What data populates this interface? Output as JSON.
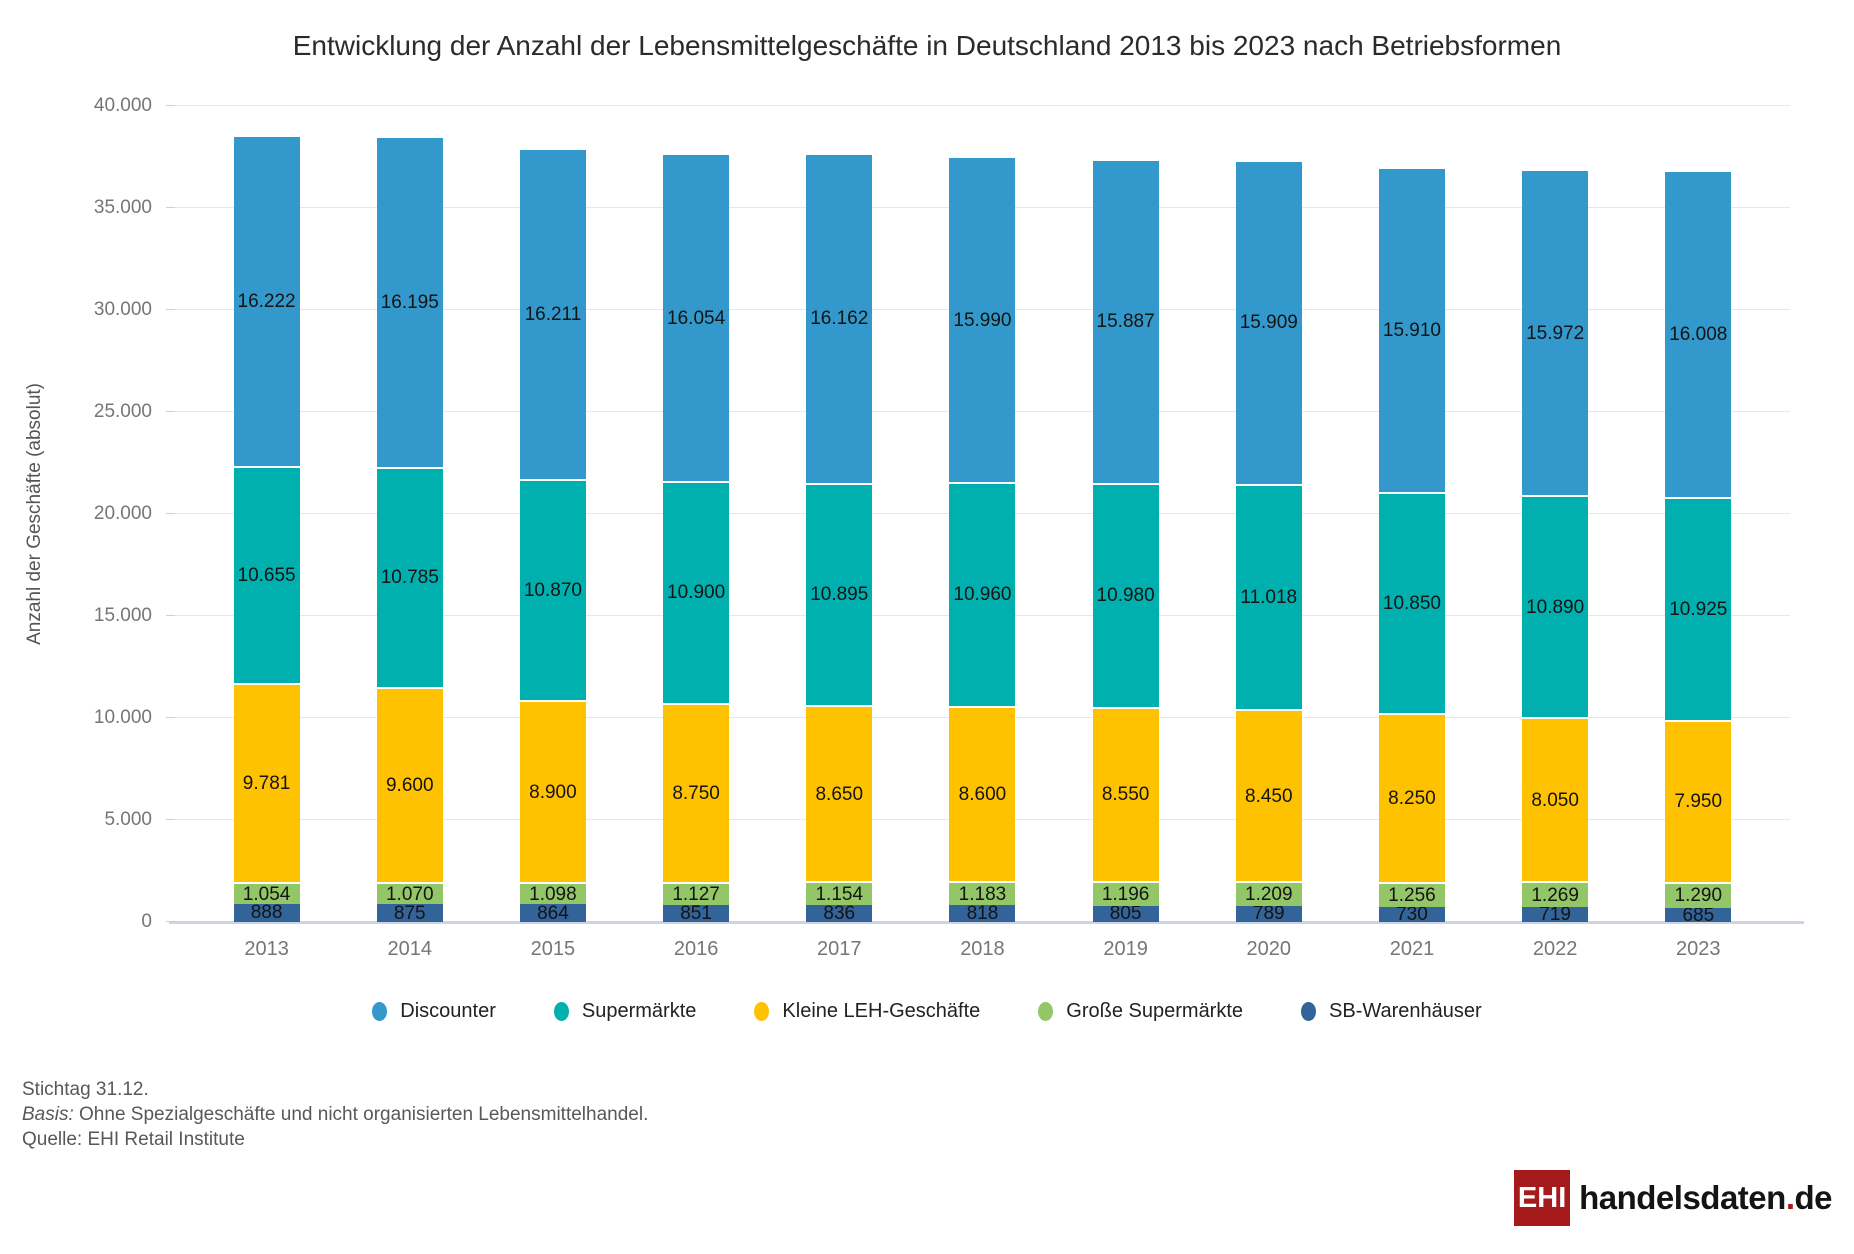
{
  "chart_data": {
    "type": "bar",
    "stacked": true,
    "title": "Entwicklung der Anzahl der Lebensmittelgeschäfte in Deutschland 2013 bis 2023 nach Betriebsformen",
    "ylabel": "Anzahl der Geschäfte (absolut)",
    "xlabel": "",
    "ylim": [
      0,
      40000
    ],
    "grid": true,
    "legend_position": "bottom",
    "yticks": [
      0,
      5000,
      10000,
      15000,
      20000,
      25000,
      30000,
      35000,
      40000
    ],
    "ytick_labels": [
      "0",
      "5.000",
      "10.000",
      "15.000",
      "20.000",
      "25.000",
      "30.000",
      "35.000",
      "40.000"
    ],
    "categories": [
      "2013",
      "2014",
      "2015",
      "2016",
      "2017",
      "2018",
      "2019",
      "2020",
      "2021",
      "2022",
      "2023"
    ],
    "series": [
      {
        "name": "SB-Warenhäuser",
        "color": "#326399",
        "values": [
          888,
          875,
          864,
          851,
          836,
          818,
          805,
          789,
          730,
          719,
          685
        ],
        "labels": [
          "888",
          "875",
          "864",
          "851",
          "836",
          "818",
          "805",
          "789",
          "730",
          "719",
          "685"
        ]
      },
      {
        "name": "Große Supermärkte",
        "color": "#93c667",
        "values": [
          1054,
          1070,
          1098,
          1127,
          1154,
          1183,
          1196,
          1209,
          1256,
          1269,
          1290
        ],
        "labels": [
          "1.054",
          "1.070",
          "1.098",
          "1.127",
          "1.154",
          "1.183",
          "1.196",
          "1.209",
          "1.256",
          "1.269",
          "1.290"
        ]
      },
      {
        "name": "Kleine LEH-Geschäfte",
        "color": "#ffc200",
        "values": [
          9781,
          9600,
          8900,
          8750,
          8650,
          8600,
          8550,
          8450,
          8250,
          8050,
          7950
        ],
        "labels": [
          "9.781",
          "9.600",
          "8.900",
          "8.750",
          "8.650",
          "8.600",
          "8.550",
          "8.450",
          "8.250",
          "8.050",
          "7.950"
        ]
      },
      {
        "name": "Supermärkte",
        "color": "#00b0ae",
        "values": [
          10655,
          10785,
          10870,
          10900,
          10895,
          10960,
          10980,
          11018,
          10850,
          10890,
          10925
        ],
        "labels": [
          "10.655",
          "10.785",
          "10.870",
          "10.900",
          "10.895",
          "10.960",
          "10.980",
          "11.018",
          "10.850",
          "10.890",
          "10.925"
        ]
      },
      {
        "name": "Discounter",
        "color": "#3399cc",
        "values": [
          16222,
          16195,
          16211,
          16054,
          16162,
          15990,
          15887,
          15909,
          15910,
          15972,
          16008
        ],
        "labels": [
          "16.222",
          "16.195",
          "16.211",
          "16.054",
          "16.162",
          "15.990",
          "15.887",
          "15.909",
          "15.910",
          "15.972",
          "16.008"
        ]
      }
    ],
    "legend_order": [
      "Discounter",
      "Supermärkte",
      "Kleine LEH-Geschäfte",
      "Große Supermärkte",
      "SB-Warenhäuser"
    ]
  },
  "footer": {
    "stichtag": "Stichtag 31.12.",
    "basis_label": "Basis:",
    "basis_text": " Ohne Spezialgeschäfte und nicht organisierten Lebensmittelhandel.",
    "quelle": "Quelle: EHI Retail Institute"
  },
  "logo": {
    "ehi": "EHI",
    "name": "handelsdaten",
    "dot": ".",
    "tld": "de",
    "red": "#a51b1b"
  }
}
